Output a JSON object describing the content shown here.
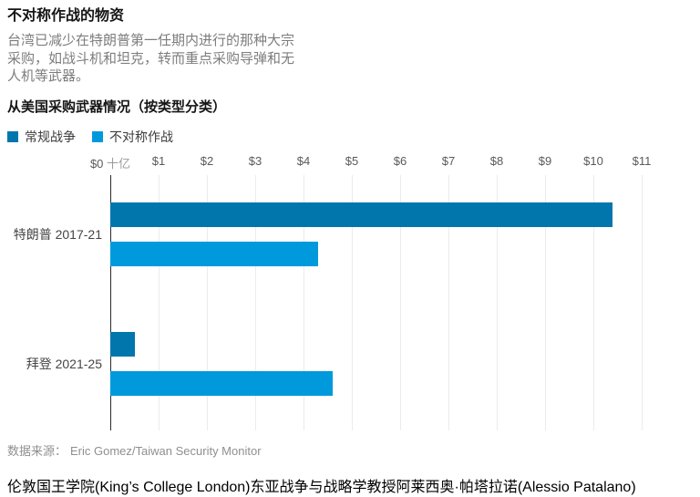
{
  "header": {
    "title": "不对称作战的物资",
    "description": "台湾已减少在特朗普第一任期内进行的那种大宗采购，如战斗机和坦克，转而重点采购导弹和无人机等武器。"
  },
  "chart_data": {
    "type": "bar",
    "orientation": "horizontal",
    "title": "从美国采购武器情况（按类型分类）",
    "x_axis": {
      "ticks": [
        "$0",
        "$1",
        "$2",
        "$3",
        "$4",
        "$5",
        "$6",
        "$7",
        "$8",
        "$9",
        "$10",
        "$11"
      ],
      "unit_label": "十亿",
      "min": 0,
      "max": 11
    },
    "categories": [
      {
        "key": "trump-2017-21",
        "label": "特朗普 2017-21"
      },
      {
        "key": "biden-2021-25",
        "label": "拜登 2021-25"
      }
    ],
    "series": [
      {
        "key": "conventional",
        "name": "常规战争",
        "color": "#0076ad",
        "values": [
          10.4,
          0.5
        ]
      },
      {
        "key": "asymmetric",
        "name": "不对称作战",
        "color": "#0099dc",
        "values": [
          4.3,
          4.6
        ]
      }
    ],
    "legend_position": "top",
    "grid": true
  },
  "source": {
    "label": "数据来源：",
    "text": "Eric Gomez/Taiwan Security Monitor"
  },
  "footer": {
    "paragraph": "伦敦国王学院(King’s College London)东亚战争与战略学教授阿莱西奥·帕塔拉诺(Alessio Patalano)"
  },
  "colors": {
    "conventional_blue": "#0076ad",
    "asymmetric_blue": "#0099dc",
    "gridline": "#ebebeb",
    "zero_axis": "#2b2b2b"
  }
}
